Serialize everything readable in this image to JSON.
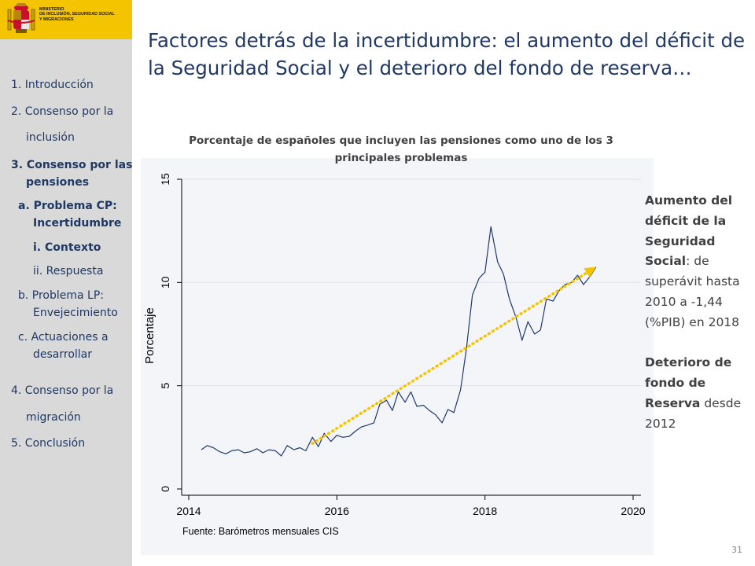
{
  "sidebar": {
    "ministry_text": "MINISTERIO\nDE INCLUSIÓN, SEGURIDAD SOCIAL\nY MIGRACIONES",
    "nav": [
      {
        "label": "1. Introducción",
        "bold": false
      },
      {
        "label": "2. Consenso por la",
        "bold": false
      },
      {
        "label": "inclusión",
        "bold": false
      },
      {
        "label": "3. Consenso por las",
        "bold": true
      },
      {
        "label": "pensiones",
        "bold": true
      },
      {
        "label": "a. Problema CP:",
        "bold": true
      },
      {
        "label": "Incertidumbre",
        "bold": true
      },
      {
        "label": "i.  Contexto",
        "bold": true
      },
      {
        "label": "ii. Respuesta",
        "bold": false
      },
      {
        "label": "b. Problema LP:",
        "bold": false
      },
      {
        "label": "Envejecimiento",
        "bold": false
      },
      {
        "label": "c.  Actuaciones a",
        "bold": false
      },
      {
        "label": "desarrollar",
        "bold": false
      },
      {
        "label": "4. Consenso por la",
        "bold": false
      },
      {
        "label": "migración",
        "bold": false
      },
      {
        "label": "5. Conclusión",
        "bold": false
      }
    ]
  },
  "title": "Factores detrás de la incertidumbre: el aumento del déficit de la Seguridad Social y el deterioro del fondo de reserva…",
  "chart_data": {
    "type": "line",
    "title": "Porcentaje de españoles que incluyen las pensiones como uno de los 3 principales problemas",
    "ylabel": "Porcentaje",
    "xlabel": "",
    "source": "Fuente: Barómetros mensuales CIS",
    "xlim": [
      2014,
      2020
    ],
    "ylim": [
      0,
      15
    ],
    "x_ticks": [
      2014,
      2016,
      2018,
      2020
    ],
    "y_ticks": [
      0,
      5,
      10,
      15
    ],
    "grid": true,
    "series": [
      {
        "color": "#1f3a6e",
        "points": [
          [
            2014.17,
            1.9
          ],
          [
            2014.25,
            2.1
          ],
          [
            2014.33,
            2.0
          ],
          [
            2014.42,
            1.8
          ],
          [
            2014.5,
            1.7
          ],
          [
            2014.58,
            1.85
          ],
          [
            2014.67,
            1.9
          ],
          [
            2014.75,
            1.75
          ],
          [
            2014.83,
            1.8
          ],
          [
            2014.92,
            1.95
          ],
          [
            2015.0,
            1.75
          ],
          [
            2015.08,
            1.9
          ],
          [
            2015.17,
            1.85
          ],
          [
            2015.25,
            1.6
          ],
          [
            2015.33,
            2.1
          ],
          [
            2015.42,
            1.9
          ],
          [
            2015.5,
            2.0
          ],
          [
            2015.58,
            1.85
          ],
          [
            2015.67,
            2.5
          ],
          [
            2015.75,
            2.05
          ],
          [
            2015.83,
            2.7
          ],
          [
            2015.92,
            2.3
          ],
          [
            2016.0,
            2.6
          ],
          [
            2016.08,
            2.5
          ],
          [
            2016.17,
            2.55
          ],
          [
            2016.25,
            2.8
          ],
          [
            2016.33,
            3.0
          ],
          [
            2016.42,
            3.1
          ],
          [
            2016.5,
            3.2
          ],
          [
            2016.58,
            4.1
          ],
          [
            2016.67,
            4.3
          ],
          [
            2016.75,
            3.8
          ],
          [
            2016.83,
            4.7
          ],
          [
            2016.92,
            4.2
          ],
          [
            2017.0,
            4.7
          ],
          [
            2017.08,
            4.0
          ],
          [
            2017.17,
            4.05
          ],
          [
            2017.25,
            3.8
          ],
          [
            2017.33,
            3.6
          ],
          [
            2017.42,
            3.2
          ],
          [
            2017.5,
            3.85
          ],
          [
            2017.58,
            3.7
          ],
          [
            2017.67,
            4.8
          ],
          [
            2017.75,
            6.8
          ],
          [
            2017.83,
            9.4
          ],
          [
            2017.92,
            10.2
          ],
          [
            2018.0,
            10.5
          ],
          [
            2018.08,
            12.7
          ],
          [
            2018.17,
            11.0
          ],
          [
            2018.25,
            10.4
          ],
          [
            2018.33,
            9.2
          ],
          [
            2018.42,
            8.3
          ],
          [
            2018.5,
            7.2
          ],
          [
            2018.58,
            8.1
          ],
          [
            2018.67,
            7.5
          ],
          [
            2018.75,
            7.7
          ],
          [
            2018.83,
            9.2
          ],
          [
            2018.92,
            9.1
          ],
          [
            2019.0,
            9.6
          ],
          [
            2019.08,
            9.9
          ],
          [
            2019.17,
            10.0
          ],
          [
            2019.25,
            10.35
          ],
          [
            2019.33,
            9.9
          ],
          [
            2019.42,
            10.3
          ],
          [
            2019.5,
            10.75
          ]
        ]
      }
    ],
    "trend_arrow": {
      "from": [
        2015.67,
        2.2
      ],
      "to": [
        2019.5,
        10.75
      ],
      "color": "#f5c400"
    }
  },
  "side_note": {
    "deficit_bold": "Aumento del déficit de la Seguridad Social",
    "deficit_rest": ": de superávit hasta 2010 a -1,44 (%PIB) en 2018",
    "reserve_bold": "Deterioro de fondo de Reserva",
    "reserve_rest": " desde 2012"
  },
  "slide_number": "31",
  "colors": {
    "accent": "#f5c400",
    "title": "#1f3864",
    "line": "#1f3a6e"
  }
}
